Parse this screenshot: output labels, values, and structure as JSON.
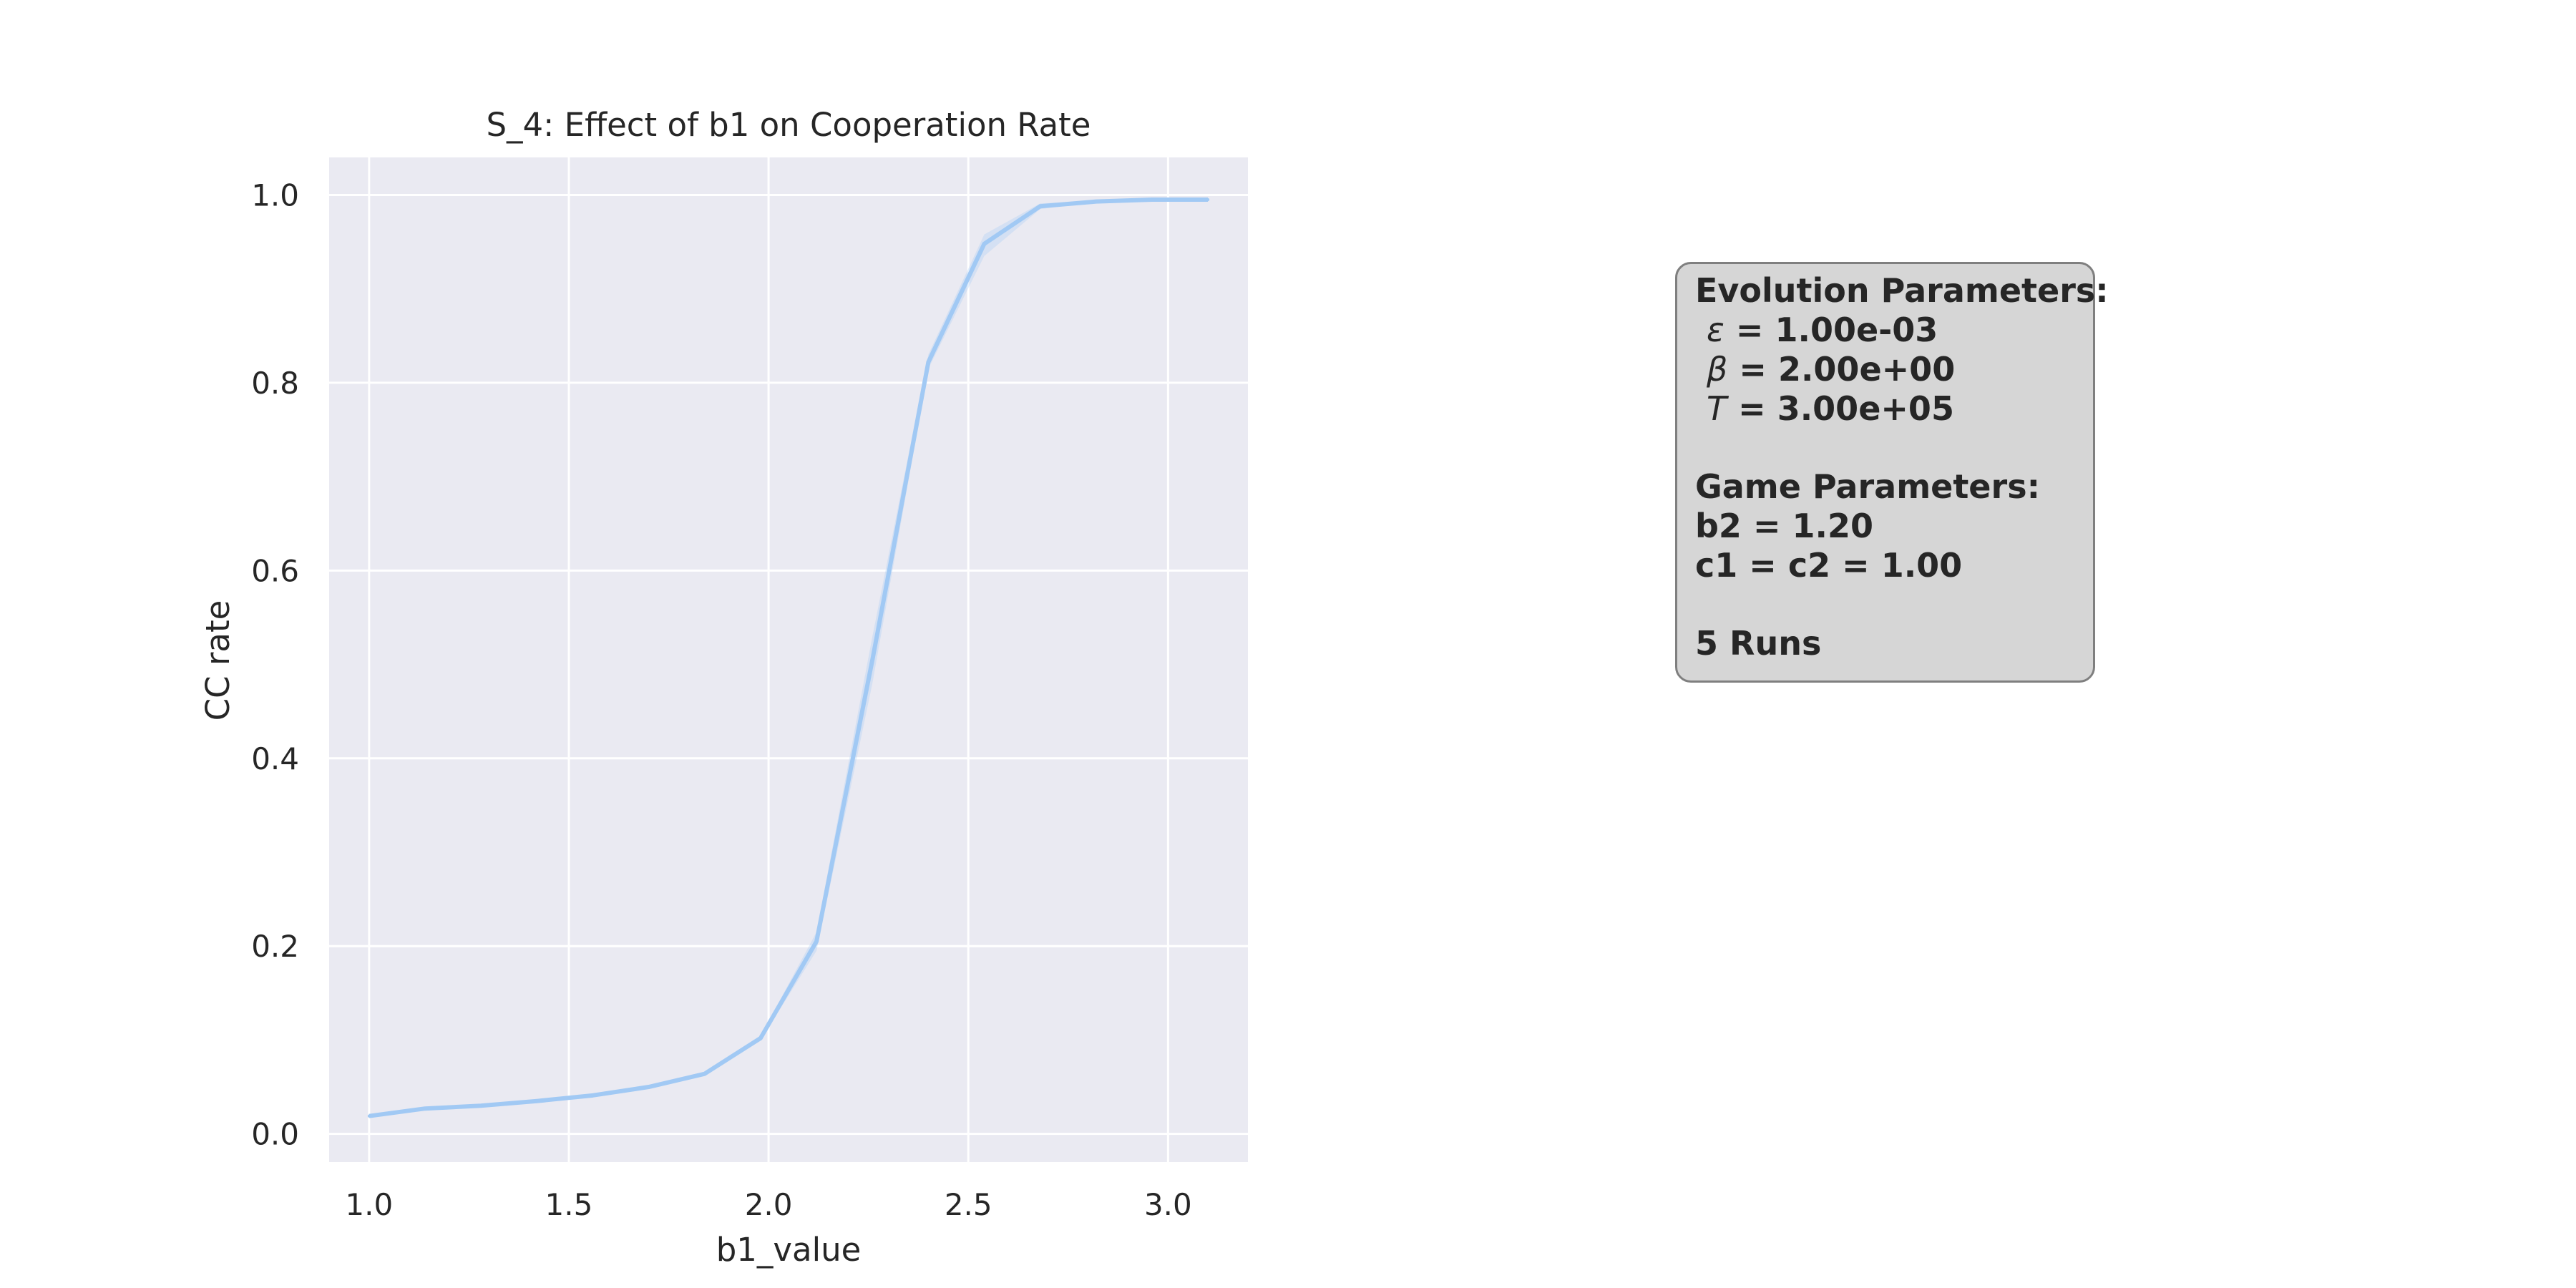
{
  "chart_data": {
    "type": "line",
    "title": "S_4: Effect of b1 on Cooperation Rate",
    "xlabel": "b1_value",
    "ylabel": "CC rate",
    "xlim": [
      0.9,
      3.2
    ],
    "ylim": [
      -0.03,
      1.04
    ],
    "xticks": [
      "1.0",
      "1.5",
      "2.0",
      "2.5",
      "3.0"
    ],
    "yticks": [
      "0.0",
      "0.2",
      "0.4",
      "0.6",
      "0.8",
      "1.0"
    ],
    "grid": true,
    "legend": "none",
    "series": [
      {
        "color": "#a1c9f4",
        "x": [
          1.0,
          1.14,
          1.28,
          1.42,
          1.56,
          1.7,
          1.84,
          1.98,
          2.12,
          2.26,
          2.4,
          2.54,
          2.68,
          2.82,
          2.96,
          3.1
        ],
        "y": [
          0.019,
          0.027,
          0.03,
          0.035,
          0.041,
          0.05,
          0.064,
          0.102,
          0.205,
          0.505,
          0.822,
          0.948,
          0.988,
          0.993,
          0.995,
          0.995
        ],
        "ci_low": [
          0.018,
          0.026,
          0.029,
          0.034,
          0.04,
          0.049,
          0.062,
          0.1,
          0.195,
          0.48,
          0.815,
          0.935,
          0.985,
          0.992,
          0.994,
          0.994
        ],
        "ci_high": [
          0.02,
          0.028,
          0.031,
          0.036,
          0.042,
          0.051,
          0.066,
          0.104,
          0.215,
          0.53,
          0.83,
          0.958,
          0.991,
          0.994,
          0.996,
          0.996
        ]
      }
    ]
  },
  "colors": {
    "plot_background": "#eaeaf2",
    "grid": "#ffffff",
    "line": "#a1c9f4",
    "box_background": "#d6d6d6",
    "box_border": "#7f7f7f",
    "text": "#262626"
  },
  "params_box": {
    "evolution_heading": "Evolution Parameters:",
    "epsilon_symbol": "ε",
    "epsilon_value": " = 1.00e-03",
    "beta_symbol": "β",
    "beta_value": " = 2.00e+00",
    "t_symbol": "T",
    "t_value": " = 3.00e+05",
    "game_heading": "Game Parameters:",
    "b2_line": "b2 = 1.20",
    "c_line": "c1 = c2 = 1.00",
    "runs_line": "5 Runs"
  }
}
